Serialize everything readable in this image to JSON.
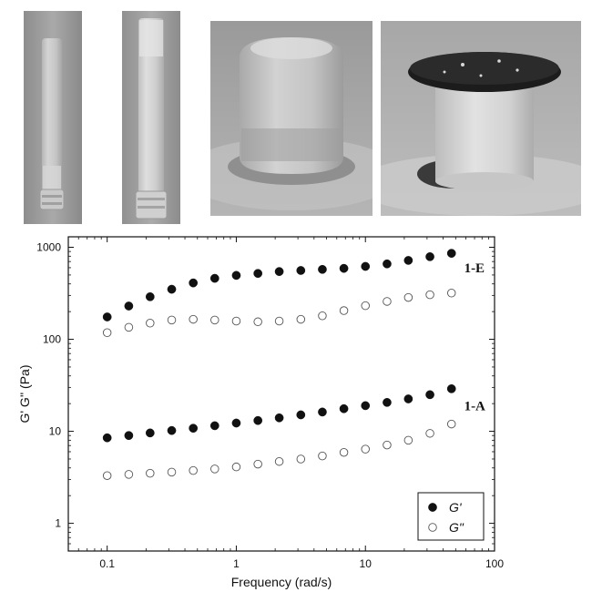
{
  "photos": [
    {
      "name": "vial-tube-left"
    },
    {
      "name": "vial-tube-right"
    },
    {
      "name": "gel-cylinder"
    },
    {
      "name": "gel-with-disc"
    }
  ],
  "chart_data": {
    "type": "scatter",
    "xlabel": "Frequency (rad/s)",
    "ylabel": "G' G'' (Pa)",
    "xscale": "log",
    "yscale": "log",
    "xlim": [
      0.05,
      100
    ],
    "ylim": [
      0.5,
      1300
    ],
    "xticks": [
      "0.1",
      "1",
      "10",
      "100"
    ],
    "yticks": [
      "1",
      "10",
      "100",
      "1000"
    ],
    "legend_position": "bottom-right",
    "grid": false,
    "x": [
      0.1,
      0.147,
      0.215,
      0.316,
      0.464,
      0.681,
      1.0,
      1.47,
      2.15,
      3.16,
      4.64,
      6.81,
      10.0,
      14.7,
      21.5,
      31.6,
      46.4
    ],
    "series": [
      {
        "name": "G'",
        "marker": "filled-circle",
        "group": "1-E",
        "values": [
          175,
          230,
          290,
          350,
          410,
          460,
          495,
          520,
          545,
          560,
          575,
          590,
          620,
          660,
          720,
          790,
          860
        ]
      },
      {
        "name": "G''",
        "marker": "open-circle",
        "group": "1-E",
        "values": [
          118,
          135,
          150,
          162,
          165,
          162,
          158,
          155,
          158,
          165,
          180,
          205,
          232,
          258,
          285,
          305,
          318
        ]
      },
      {
        "name": "G'",
        "marker": "filled-circle",
        "group": "1-A",
        "values": [
          8.5,
          9.0,
          9.6,
          10.2,
          10.8,
          11.5,
          12.3,
          13.1,
          14.0,
          15.1,
          16.2,
          17.6,
          19.0,
          20.6,
          22.5,
          25.0,
          29.0
        ]
      },
      {
        "name": "G''",
        "marker": "open-circle",
        "group": "1-A",
        "values": [
          3.3,
          3.4,
          3.5,
          3.6,
          3.75,
          3.9,
          4.1,
          4.4,
          4.7,
          5.0,
          5.4,
          5.9,
          6.4,
          7.1,
          8.0,
          9.5,
          12.0
        ]
      }
    ],
    "annotations": [
      {
        "text": "1-E",
        "x": 62,
        "y": 600
      },
      {
        "text": "1-A",
        "x": 62,
        "y": 19
      }
    ],
    "legend": [
      {
        "label": "G'",
        "marker": "filled-circle"
      },
      {
        "label": "G\"",
        "marker": "open-circle"
      }
    ]
  }
}
